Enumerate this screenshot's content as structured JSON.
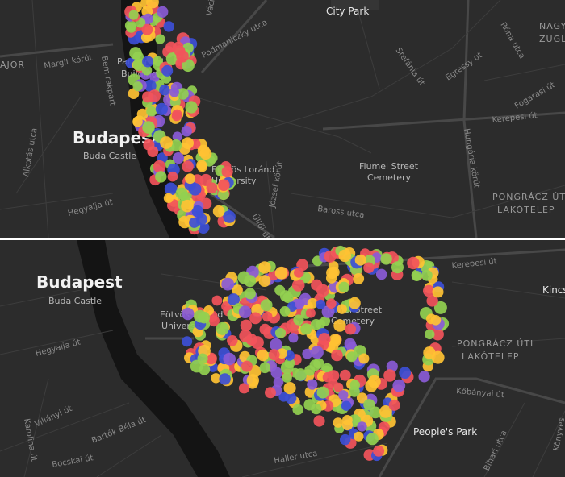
{
  "top_panel": {
    "labels": [
      "AJOR",
      "Margit körút",
      "Bem rakpart",
      "Parliament",
      "Building",
      "Budapest",
      "Buda Castle",
      "Alkotás utca",
      "Hegyalja út",
      "Váci",
      "Podmaniczky utca",
      "City Park",
      "Stefánia út",
      "Egressy út",
      "Róna utca",
      "Fogarasi út",
      "Hungária körút",
      "Kerepesi út",
      "NAGY",
      "ZUGLÓ",
      "Eötvös Loránd",
      "University",
      "József körút",
      "Fiumei Street",
      "Cemetery",
      "Baross utca",
      "Üllői út",
      "PONGRÁCZ ÚTI",
      "LAKÓTELEP"
    ]
  },
  "bottom_panel": {
    "labels": [
      "Budapest",
      "Buda Castle",
      "Hegyalja út",
      "Villányi út",
      "Karolina út",
      "Bartók Béla út",
      "Bocskai út",
      "Haller utca",
      "Eötvös Loránd",
      "University",
      "Fiumei Street",
      "Cemetery",
      "Kerepesi út",
      "Kincs",
      "PONGRÁCZ ÚTI",
      "LAKÓTELEP",
      "Kőbányai út",
      "People's Park",
      "Bihari utca",
      "Könyves"
    ]
  }
}
